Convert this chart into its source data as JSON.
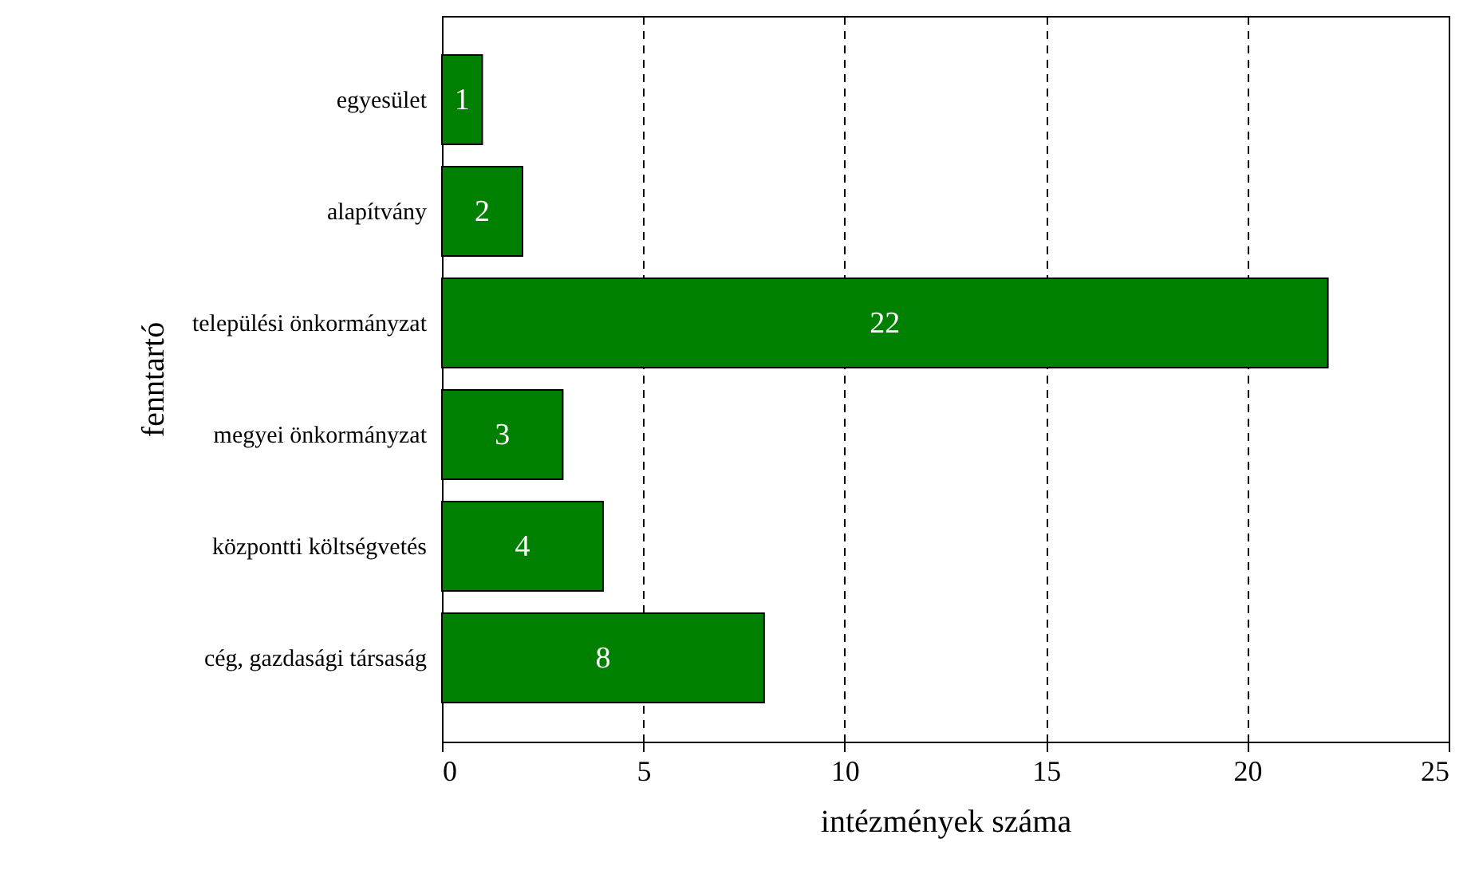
{
  "chart_data": {
    "type": "bar",
    "orientation": "horizontal",
    "xlabel": "intézmények száma",
    "ylabel": "fenntartó",
    "categories": [
      "egyesület",
      "alapítvány",
      "települési önkormányzat",
      "megyei önkormányzat",
      "központti költségvetés",
      "cég, gazdasági társaság"
    ],
    "values": [
      1,
      2,
      22,
      3,
      4,
      8
    ],
    "color": "#008000",
    "xlim": [
      0,
      25
    ],
    "xticks": [
      0,
      5,
      10,
      15,
      20,
      25
    ],
    "grid": "x",
    "line_style": "dashed",
    "data_labels": true
  }
}
